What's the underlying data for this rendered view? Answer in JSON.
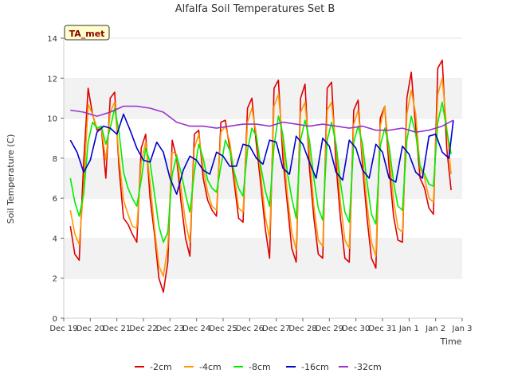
{
  "chart_data": {
    "type": "line",
    "title": "Alfalfa Soil Temperatures Set B",
    "badge": "TA_met",
    "xlabel": "Time",
    "ylabel": "Soil Temperature (C)",
    "ylim": [
      0,
      14
    ],
    "yticks": [
      0,
      2,
      4,
      6,
      8,
      10,
      12,
      14
    ],
    "xlim": [
      "2024-12-19",
      "2025-01-03"
    ],
    "xticks": [
      {
        "t": "2024-12-19",
        "label": "Dec 19"
      },
      {
        "t": "2024-12-20",
        "label": "Dec 20"
      },
      {
        "t": "2024-12-21",
        "label": "Dec 21"
      },
      {
        "t": "2024-12-22",
        "label": "Dec 22"
      },
      {
        "t": "2024-12-23",
        "label": "Dec 23"
      },
      {
        "t": "2024-12-24",
        "label": "Dec 24"
      },
      {
        "t": "2024-12-25",
        "label": "Dec 25"
      },
      {
        "t": "2024-12-26",
        "label": "Dec 26"
      },
      {
        "t": "2024-12-27",
        "label": "Dec 27"
      },
      {
        "t": "2024-12-28",
        "label": "Dec 28"
      },
      {
        "t": "2024-12-29",
        "label": "Dec 29"
      },
      {
        "t": "2024-12-30",
        "label": "Dec 30"
      },
      {
        "t": "2024-12-31",
        "label": "Dec 31"
      },
      {
        "t": "2025-01-01",
        "label": "Jan 1"
      },
      {
        "t": "2025-01-02",
        "label": "Jan 2"
      },
      {
        "t": "2025-01-03",
        "label": "Jan 3"
      }
    ],
    "grid": "horizontal bands",
    "legend_position": "bottom",
    "colors": {
      "band": "#f2f2f2",
      "badge_bg": "#ffffcc",
      "badge_text": "#8b0000"
    },
    "series": [
      {
        "name": "-2cm",
        "color": "#dd0000",
        "x": [
          "2024-12-19 06:00",
          "2024-12-19 10:00",
          "2024-12-19 14:00",
          "2024-12-19 18:00",
          "2024-12-19 22:00",
          "2024-12-20 02:00",
          "2024-12-20 06:00",
          "2024-12-20 10:00",
          "2024-12-20 14:00",
          "2024-12-20 18:00",
          "2024-12-20 22:00",
          "2024-12-21 02:00",
          "2024-12-21 06:00",
          "2024-12-21 10:00",
          "2024-12-21 14:00",
          "2024-12-21 18:00",
          "2024-12-21 22:00",
          "2024-12-22 02:00",
          "2024-12-22 06:00",
          "2024-12-22 10:00",
          "2024-12-22 14:00",
          "2024-12-22 18:00",
          "2024-12-22 22:00",
          "2024-12-23 02:00",
          "2024-12-23 06:00",
          "2024-12-23 10:00",
          "2024-12-23 14:00",
          "2024-12-23 18:00",
          "2024-12-23 22:00",
          "2024-12-24 02:00",
          "2024-12-24 06:00",
          "2024-12-24 10:00",
          "2024-12-24 14:00",
          "2024-12-24 18:00",
          "2024-12-24 22:00",
          "2024-12-25 02:00",
          "2024-12-25 06:00",
          "2024-12-25 10:00",
          "2024-12-25 14:00",
          "2024-12-25 18:00",
          "2024-12-25 22:00",
          "2024-12-26 02:00",
          "2024-12-26 06:00",
          "2024-12-26 10:00",
          "2024-12-26 14:00",
          "2024-12-26 18:00",
          "2024-12-26 22:00",
          "2024-12-27 02:00",
          "2024-12-27 06:00",
          "2024-12-27 10:00",
          "2024-12-27 14:00",
          "2024-12-27 18:00",
          "2024-12-27 22:00",
          "2024-12-28 02:00",
          "2024-12-28 06:00",
          "2024-12-28 10:00",
          "2024-12-28 14:00",
          "2024-12-28 18:00",
          "2024-12-28 22:00",
          "2024-12-29 02:00",
          "2024-12-29 06:00",
          "2024-12-29 10:00",
          "2024-12-29 14:00",
          "2024-12-29 18:00",
          "2024-12-29 22:00",
          "2024-12-30 02:00",
          "2024-12-30 06:00",
          "2024-12-30 10:00",
          "2024-12-30 14:00",
          "2024-12-30 18:00",
          "2024-12-30 22:00",
          "2024-12-31 02:00",
          "2024-12-31 06:00",
          "2024-12-31 10:00",
          "2024-12-31 14:00",
          "2024-12-31 18:00",
          "2024-12-31 22:00",
          "2025-01-01 02:00",
          "2025-01-01 06:00",
          "2025-01-01 10:00",
          "2025-01-01 14:00",
          "2025-01-01 18:00",
          "2025-01-01 22:00",
          "2025-01-02 02:00",
          "2025-01-02 06:00",
          "2025-01-02 10:00",
          "2025-01-02 14:00"
        ],
        "values": [
          4.6,
          3.2,
          2.9,
          7.8,
          11.5,
          10.2,
          9.4,
          9.5,
          7.0,
          11.0,
          11.3,
          7.5,
          5.0,
          4.7,
          4.2,
          3.8,
          8.5,
          9.2,
          6.0,
          4.2,
          2.0,
          1.3,
          2.8,
          8.9,
          8.0,
          5.8,
          4.0,
          3.1,
          9.2,
          9.4,
          7.0,
          5.9,
          5.4,
          5.1,
          9.8,
          9.9,
          8.5,
          6.8,
          5.0,
          4.8,
          10.5,
          11.0,
          8.7,
          6.7,
          4.5,
          3.0,
          11.5,
          11.9,
          8.0,
          5.7,
          3.5,
          2.8,
          11.0,
          11.7,
          7.5,
          5.0,
          3.2,
          3.0,
          11.5,
          11.8,
          7.7,
          5.0,
          3.0,
          2.8,
          10.4,
          10.9,
          7.6,
          5.0,
          3.0,
          2.5,
          10.0,
          10.6,
          7.5,
          5.1,
          3.9,
          3.8,
          11.0,
          12.3,
          9.5,
          7.0,
          6.5,
          5.5,
          5.2,
          12.5,
          12.9,
          8.5,
          6.4
        ]
      },
      {
        "name": "-4cm",
        "color": "#ff9900",
        "x": [
          "2024-12-19 06:00",
          "2024-12-19 10:00",
          "2024-12-19 14:00",
          "2024-12-19 18:00",
          "2024-12-19 22:00",
          "2024-12-20 02:00",
          "2024-12-20 06:00",
          "2024-12-20 10:00",
          "2024-12-20 14:00",
          "2024-12-20 18:00",
          "2024-12-20 22:00",
          "2024-12-21 02:00",
          "2024-12-21 06:00",
          "2024-12-21 10:00",
          "2024-12-21 14:00",
          "2024-12-21 18:00",
          "2024-12-21 22:00",
          "2024-12-22 02:00",
          "2024-12-22 06:00",
          "2024-12-22 10:00",
          "2024-12-22 14:00",
          "2024-12-22 18:00",
          "2024-12-22 22:00",
          "2024-12-23 02:00",
          "2024-12-23 06:00",
          "2024-12-23 10:00",
          "2024-12-23 14:00",
          "2024-12-23 18:00",
          "2024-12-23 22:00",
          "2024-12-24 02:00",
          "2024-12-24 06:00",
          "2024-12-24 10:00",
          "2024-12-24 14:00",
          "2024-12-24 18:00",
          "2024-12-24 22:00",
          "2024-12-25 02:00",
          "2024-12-25 06:00",
          "2024-12-25 10:00",
          "2024-12-25 14:00",
          "2024-12-25 18:00",
          "2024-12-25 22:00",
          "2024-12-26 02:00",
          "2024-12-26 06:00",
          "2024-12-26 10:00",
          "2024-12-26 14:00",
          "2024-12-26 18:00",
          "2024-12-26 22:00",
          "2024-12-27 02:00",
          "2024-12-27 06:00",
          "2024-12-27 10:00",
          "2024-12-27 14:00",
          "2024-12-27 18:00",
          "2024-12-27 22:00",
          "2024-12-28 02:00",
          "2024-12-28 06:00",
          "2024-12-28 10:00",
          "2024-12-28 14:00",
          "2024-12-28 18:00",
          "2024-12-28 22:00",
          "2024-12-29 02:00",
          "2024-12-29 06:00",
          "2024-12-29 10:00",
          "2024-12-29 14:00",
          "2024-12-29 18:00",
          "2024-12-29 22:00",
          "2024-12-30 02:00",
          "2024-12-30 06:00",
          "2024-12-30 10:00",
          "2024-12-30 14:00",
          "2024-12-30 18:00",
          "2024-12-30 22:00",
          "2024-12-31 02:00",
          "2024-12-31 06:00",
          "2024-12-31 10:00",
          "2024-12-31 14:00",
          "2024-12-31 18:00",
          "2024-12-31 22:00",
          "2025-01-01 02:00",
          "2025-01-01 06:00",
          "2025-01-01 10:00",
          "2025-01-01 14:00",
          "2025-01-01 18:00",
          "2025-01-01 22:00",
          "2025-01-02 02:00",
          "2025-01-02 06:00",
          "2025-01-02 10:00",
          "2025-01-02 14:00"
        ],
        "values": [
          5.4,
          4.2,
          3.7,
          6.5,
          10.7,
          10.2,
          9.5,
          9.5,
          7.9,
          10.3,
          10.8,
          8.0,
          5.9,
          5.2,
          4.6,
          4.5,
          7.8,
          8.8,
          6.8,
          4.5,
          2.6,
          2.1,
          3.6,
          8.3,
          8.2,
          6.5,
          4.8,
          3.8,
          8.5,
          9.2,
          7.5,
          6.3,
          5.6,
          5.4,
          9.3,
          9.6,
          8.8,
          7.2,
          5.5,
          5.3,
          9.8,
          10.5,
          9.2,
          7.2,
          5.1,
          4.0,
          10.6,
          11.2,
          8.8,
          6.2,
          4.3,
          3.4,
          10.3,
          10.8,
          8.3,
          5.6,
          3.9,
          3.6,
          10.4,
          10.8,
          8.5,
          5.8,
          3.9,
          3.5,
          9.7,
          10.4,
          8.1,
          5.7,
          3.8,
          3.1,
          9.6,
          10.6,
          8.2,
          5.9,
          4.5,
          4.3,
          10.2,
          11.4,
          10.2,
          7.5,
          7.0,
          6.0,
          5.8,
          11.2,
          12.0,
          9.5,
          7.2
        ]
      },
      {
        "name": "-8cm",
        "color": "#00ee00",
        "x": [
          "2024-12-19 06:00",
          "2024-12-19 10:00",
          "2024-12-19 14:00",
          "2024-12-19 18:00",
          "2024-12-19 22:00",
          "2024-12-20 02:00",
          "2024-12-20 06:00",
          "2024-12-20 10:00",
          "2024-12-20 14:00",
          "2024-12-20 18:00",
          "2024-12-20 22:00",
          "2024-12-21 02:00",
          "2024-12-21 06:00",
          "2024-12-21 10:00",
          "2024-12-21 14:00",
          "2024-12-21 18:00",
          "2024-12-21 22:00",
          "2024-12-22 02:00",
          "2024-12-22 06:00",
          "2024-12-22 10:00",
          "2024-12-22 14:00",
          "2024-12-22 18:00",
          "2024-12-22 22:00",
          "2024-12-23 02:00",
          "2024-12-23 06:00",
          "2024-12-23 10:00",
          "2024-12-23 14:00",
          "2024-12-23 18:00",
          "2024-12-23 22:00",
          "2024-12-24 02:00",
          "2024-12-24 06:00",
          "2024-12-24 10:00",
          "2024-12-24 14:00",
          "2024-12-24 18:00",
          "2024-12-24 22:00",
          "2024-12-25 02:00",
          "2024-12-25 06:00",
          "2024-12-25 10:00",
          "2024-12-25 14:00",
          "2024-12-25 18:00",
          "2024-12-25 22:00",
          "2024-12-26 02:00",
          "2024-12-26 06:00",
          "2024-12-26 10:00",
          "2024-12-26 14:00",
          "2024-12-26 18:00",
          "2024-12-26 22:00",
          "2024-12-27 02:00",
          "2024-12-27 06:00",
          "2024-12-27 10:00",
          "2024-12-27 14:00",
          "2024-12-27 18:00",
          "2024-12-27 22:00",
          "2024-12-28 02:00",
          "2024-12-28 06:00",
          "2024-12-28 10:00",
          "2024-12-28 14:00",
          "2024-12-28 18:00",
          "2024-12-28 22:00",
          "2024-12-29 02:00",
          "2024-12-29 06:00",
          "2024-12-29 10:00",
          "2024-12-29 14:00",
          "2024-12-29 18:00",
          "2024-12-29 22:00",
          "2024-12-30 02:00",
          "2024-12-30 06:00",
          "2024-12-30 10:00",
          "2024-12-30 14:00",
          "2024-12-30 18:00",
          "2024-12-30 22:00",
          "2024-12-31 02:00",
          "2024-12-31 06:00",
          "2024-12-31 10:00",
          "2024-12-31 14:00",
          "2024-12-31 18:00",
          "2024-12-31 22:00",
          "2025-01-01 02:00",
          "2025-01-01 06:00",
          "2025-01-01 10:00",
          "2025-01-01 14:00",
          "2025-01-01 18:00",
          "2025-01-01 22:00",
          "2025-01-02 02:00",
          "2025-01-02 06:00",
          "2025-01-02 10:00",
          "2025-01-02 14:00"
        ],
        "values": [
          7.0,
          5.8,
          5.1,
          6.2,
          8.8,
          9.8,
          9.5,
          9.6,
          8.7,
          9.5,
          10.5,
          9.3,
          7.3,
          6.5,
          6.0,
          5.6,
          6.9,
          8.5,
          7.8,
          6.2,
          4.6,
          3.8,
          4.3,
          7.2,
          8.1,
          7.3,
          6.2,
          5.3,
          7.3,
          8.7,
          8.0,
          6.9,
          6.5,
          6.3,
          7.6,
          8.9,
          8.4,
          7.3,
          6.5,
          6.1,
          8.4,
          9.5,
          9.1,
          7.6,
          6.4,
          5.6,
          8.6,
          10.1,
          9.2,
          7.3,
          6.0,
          5.0,
          8.9,
          9.9,
          8.9,
          7.0,
          5.5,
          4.9,
          8.9,
          9.8,
          8.7,
          6.8,
          5.3,
          4.8,
          8.8,
          9.6,
          8.7,
          6.8,
          5.2,
          4.7,
          8.6,
          9.5,
          8.6,
          6.8,
          5.6,
          5.4,
          8.9,
          10.1,
          9.2,
          7.6,
          7.2,
          6.7,
          6.6,
          9.8,
          10.8,
          9.4,
          8.2
        ]
      },
      {
        "name": "-16cm",
        "color": "#0000cc",
        "x": [
          "2024-12-19 06:00",
          "2024-12-19 12:00",
          "2024-12-19 18:00",
          "2024-12-20 00:00",
          "2024-12-20 06:00",
          "2024-12-20 12:00",
          "2024-12-20 18:00",
          "2024-12-21 00:00",
          "2024-12-21 06:00",
          "2024-12-21 12:00",
          "2024-12-21 18:00",
          "2024-12-22 00:00",
          "2024-12-22 06:00",
          "2024-12-22 12:00",
          "2024-12-22 18:00",
          "2024-12-23 00:00",
          "2024-12-23 06:00",
          "2024-12-23 12:00",
          "2024-12-23 18:00",
          "2024-12-24 00:00",
          "2024-12-24 06:00",
          "2024-12-24 12:00",
          "2024-12-24 18:00",
          "2024-12-25 00:00",
          "2024-12-25 06:00",
          "2024-12-25 12:00",
          "2024-12-25 18:00",
          "2024-12-26 00:00",
          "2024-12-26 06:00",
          "2024-12-26 12:00",
          "2024-12-26 18:00",
          "2024-12-27 00:00",
          "2024-12-27 06:00",
          "2024-12-27 12:00",
          "2024-12-27 18:00",
          "2024-12-28 00:00",
          "2024-12-28 06:00",
          "2024-12-28 12:00",
          "2024-12-28 18:00",
          "2024-12-29 00:00",
          "2024-12-29 06:00",
          "2024-12-29 12:00",
          "2024-12-29 18:00",
          "2024-12-30 00:00",
          "2024-12-30 06:00",
          "2024-12-30 12:00",
          "2024-12-30 18:00",
          "2024-12-31 00:00",
          "2024-12-31 06:00",
          "2024-12-31 12:00",
          "2024-12-31 18:00",
          "2025-01-01 00:00",
          "2025-01-01 06:00",
          "2025-01-01 12:00",
          "2025-01-01 18:00",
          "2025-01-02 00:00",
          "2025-01-02 06:00",
          "2025-01-02 12:00",
          "2025-01-02 16:00"
        ],
        "values": [
          8.9,
          8.3,
          7.3,
          7.9,
          9.3,
          9.6,
          9.5,
          9.2,
          10.2,
          9.4,
          8.5,
          7.9,
          7.8,
          8.8,
          8.3,
          7.0,
          6.2,
          7.4,
          8.1,
          7.9,
          7.4,
          7.2,
          8.3,
          8.1,
          7.6,
          7.6,
          8.7,
          8.6,
          8.0,
          7.7,
          8.9,
          8.8,
          7.5,
          7.2,
          9.1,
          8.7,
          7.8,
          7.0,
          9.0,
          8.6,
          7.3,
          6.9,
          8.9,
          8.5,
          7.4,
          7.0,
          8.7,
          8.3,
          7.0,
          6.8,
          8.6,
          8.2,
          7.3,
          7.0,
          9.1,
          9.2,
          8.3,
          8.0,
          9.9
        ]
      },
      {
        "name": "-32cm",
        "color": "#9933cc",
        "x": [
          "2024-12-19 06:00",
          "2024-12-19 18:00",
          "2024-12-20 06:00",
          "2024-12-20 18:00",
          "2024-12-21 06:00",
          "2024-12-21 18:00",
          "2024-12-22 06:00",
          "2024-12-22 18:00",
          "2024-12-23 06:00",
          "2024-12-23 18:00",
          "2024-12-24 06:00",
          "2024-12-24 18:00",
          "2024-12-25 06:00",
          "2024-12-25 18:00",
          "2024-12-26 06:00",
          "2024-12-26 18:00",
          "2024-12-27 06:00",
          "2024-12-27 18:00",
          "2024-12-28 06:00",
          "2024-12-28 18:00",
          "2024-12-29 06:00",
          "2024-12-29 18:00",
          "2024-12-30 06:00",
          "2024-12-30 18:00",
          "2024-12-31 06:00",
          "2024-12-31 18:00",
          "2025-01-01 06:00",
          "2025-01-01 18:00",
          "2025-01-02 06:00",
          "2025-01-02 16:00"
        ],
        "values": [
          10.4,
          10.3,
          10.1,
          10.3,
          10.6,
          10.6,
          10.5,
          10.3,
          9.8,
          9.6,
          9.6,
          9.5,
          9.6,
          9.7,
          9.7,
          9.6,
          9.8,
          9.7,
          9.6,
          9.7,
          9.6,
          9.5,
          9.6,
          9.4,
          9.4,
          9.5,
          9.3,
          9.4,
          9.6,
          9.9
        ]
      }
    ]
  }
}
